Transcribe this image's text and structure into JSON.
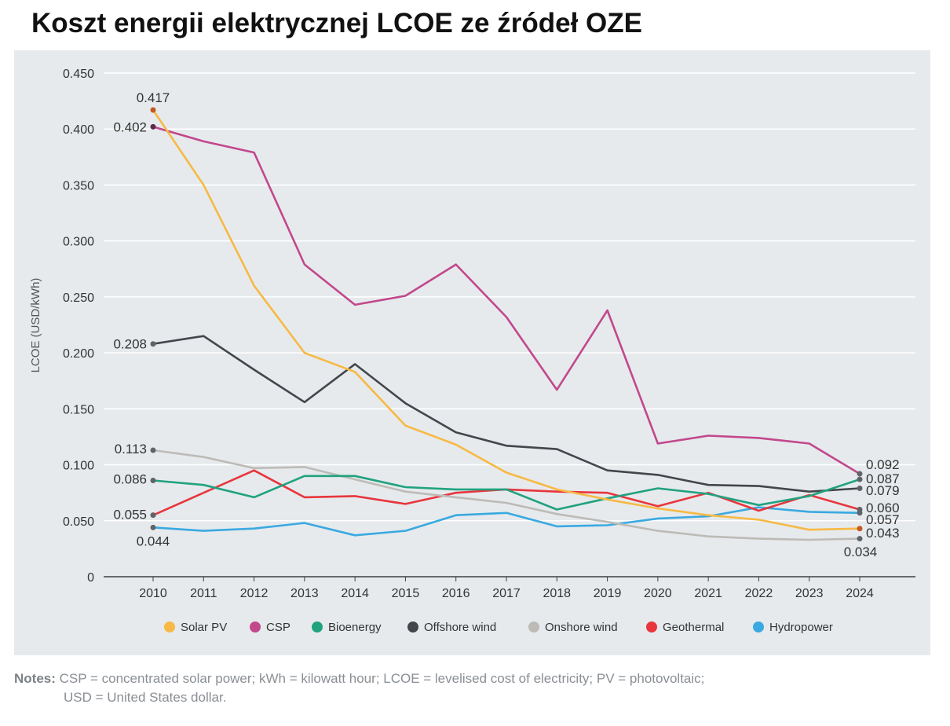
{
  "title": "Koszt energii elektrycznej LCOE ze źródeł OZE",
  "chart_data": {
    "type": "line",
    "title": "Koszt energii elektrycznej LCOE ze źródeł OZE",
    "xlabel": "",
    "ylabel": "LCOE (USD/kWh)",
    "ylim": [
      0,
      0.45
    ],
    "yticks": [
      "0",
      "0.050",
      "0.100",
      "0.150",
      "0.200",
      "0.250",
      "0.300",
      "0.350",
      "0.400",
      "0.450"
    ],
    "ytick_values": [
      0,
      0.05,
      0.1,
      0.15,
      0.2,
      0.25,
      0.3,
      0.35,
      0.4,
      0.45
    ],
    "grid": true,
    "legend_position": "bottom",
    "x": [
      "2010",
      "2011",
      "2012",
      "2013",
      "2014",
      "2015",
      "2016",
      "2017",
      "2018",
      "2019",
      "2020",
      "2021",
      "2022",
      "2023",
      "2024"
    ],
    "series": [
      {
        "name": "Solar PV",
        "color": "#f7b944",
        "values": [
          0.417,
          0.35,
          0.26,
          0.2,
          0.183,
          0.135,
          0.118,
          0.093,
          0.078,
          0.069,
          0.061,
          0.055,
          0.051,
          0.042,
          0.043
        ]
      },
      {
        "name": "CSP",
        "color": "#c2488c",
        "values": [
          0.402,
          0.389,
          0.379,
          0.279,
          0.243,
          0.251,
          0.279,
          0.232,
          0.167,
          0.238,
          0.119,
          0.126,
          0.124,
          0.119,
          0.092
        ]
      },
      {
        "name": "Bioenergy",
        "color": "#21a27f",
        "values": [
          0.086,
          0.082,
          0.071,
          0.09,
          0.09,
          0.08,
          0.078,
          0.078,
          0.06,
          0.07,
          0.079,
          0.074,
          0.064,
          0.072,
          0.087
        ]
      },
      {
        "name": "Offshore wind",
        "color": "#43474b",
        "values": [
          0.208,
          0.215,
          0.185,
          0.156,
          0.19,
          0.155,
          0.129,
          0.117,
          0.114,
          0.095,
          0.091,
          0.082,
          0.081,
          0.076,
          0.079
        ]
      },
      {
        "name": "Onshore wind",
        "color": "#bdbbb6",
        "values": [
          0.113,
          0.107,
          0.097,
          0.098,
          0.087,
          0.076,
          0.071,
          0.066,
          0.056,
          0.049,
          0.041,
          0.036,
          0.034,
          0.033,
          0.034
        ]
      },
      {
        "name": "Geothermal",
        "color": "#e8363d",
        "values": [
          0.055,
          0.075,
          0.095,
          0.071,
          0.072,
          0.065,
          0.075,
          0.078,
          0.076,
          0.075,
          0.063,
          0.075,
          0.059,
          0.073,
          0.06
        ]
      },
      {
        "name": "Hydropower",
        "color": "#3aa9e0",
        "values": [
          0.044,
          0.041,
          0.043,
          0.048,
          0.037,
          0.041,
          0.055,
          0.057,
          0.045,
          0.046,
          0.052,
          0.054,
          0.062,
          0.058,
          0.057
        ]
      }
    ],
    "annotations": {
      "start": [
        {
          "series": "Solar PV",
          "label": "0.417"
        },
        {
          "series": "CSP",
          "label": "0.402"
        },
        {
          "series": "Offshore wind",
          "label": "0.208"
        },
        {
          "series": "Onshore wind",
          "label": "0.113"
        },
        {
          "series": "Bioenergy",
          "label": "0.086"
        },
        {
          "series": "Geothermal",
          "label": "0.055"
        },
        {
          "series": "Hydropower",
          "label": "0.044"
        }
      ],
      "end": [
        {
          "series": "CSP",
          "label": "0.092"
        },
        {
          "series": "Bioenergy",
          "label": "0.087"
        },
        {
          "series": "Offshore wind",
          "label": "0.079"
        },
        {
          "series": "Geothermal",
          "label": "0.060"
        },
        {
          "series": "Hydropower",
          "label": "0.057"
        },
        {
          "series": "Solar PV",
          "label": "0.043"
        },
        {
          "series": "Onshore wind",
          "label": "0.034"
        }
      ]
    }
  },
  "notes": {
    "prefix": "Notes:",
    "line1": " CSP = concentrated solar power; kWh = kilowatt hour; LCOE = levelised cost of electricity; PV = photovoltaic;",
    "line2": "USD = United States dollar."
  }
}
